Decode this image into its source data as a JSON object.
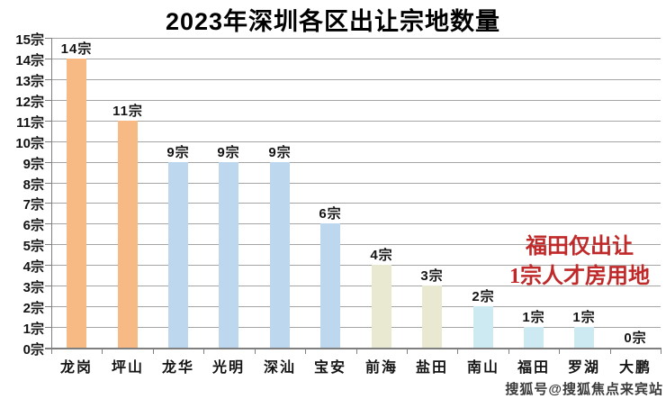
{
  "page": {
    "background": "#ffffff"
  },
  "chart_data": {
    "type": "bar",
    "title": "2023年深圳各区出让宗地数量",
    "unit": "宗",
    "categories": [
      "龙岗",
      "坪山",
      "龙华",
      "光明",
      "深汕",
      "宝安",
      "前海",
      "盐田",
      "南山",
      "福田",
      "罗湖",
      "大鹏"
    ],
    "values": [
      14,
      11,
      9,
      9,
      9,
      6,
      4,
      3,
      2,
      1,
      1,
      0
    ],
    "data_labels": [
      "14宗",
      "11宗",
      "9宗",
      "9宗",
      "9宗",
      "6宗",
      "4宗",
      "3宗",
      "2宗",
      "1宗",
      "1宗",
      "0宗"
    ],
    "bar_colors": [
      "#F8BA85",
      "#F8BA85",
      "#BDD7EE",
      "#BDD7EE",
      "#BDD7EE",
      "#BDD7EE",
      "#E9E9D1",
      "#E9E9D1",
      "#CDE9F2",
      "#CDE9F2",
      "#CDE9F2",
      "#CDE9F2"
    ],
    "ylim": [
      0,
      15
    ],
    "y_tick_step": 1,
    "y_tick_labels": [
      "0宗",
      "1宗",
      "2宗",
      "3宗",
      "4宗",
      "5宗",
      "6宗",
      "7宗",
      "8宗",
      "9宗",
      "10宗",
      "11宗",
      "12宗",
      "13宗",
      "14宗",
      "15宗"
    ],
    "grid": true,
    "legend_position": "none",
    "grid_color": "#A5A5A5",
    "axis_color": "#7F7F7F",
    "label_color": "#141414"
  },
  "annotation": {
    "line1": "福田仅出让",
    "line2": "1宗人才房用地",
    "color": "#C02929"
  },
  "watermark": {
    "text": "搜狐号@搜狐焦点来宾站"
  }
}
